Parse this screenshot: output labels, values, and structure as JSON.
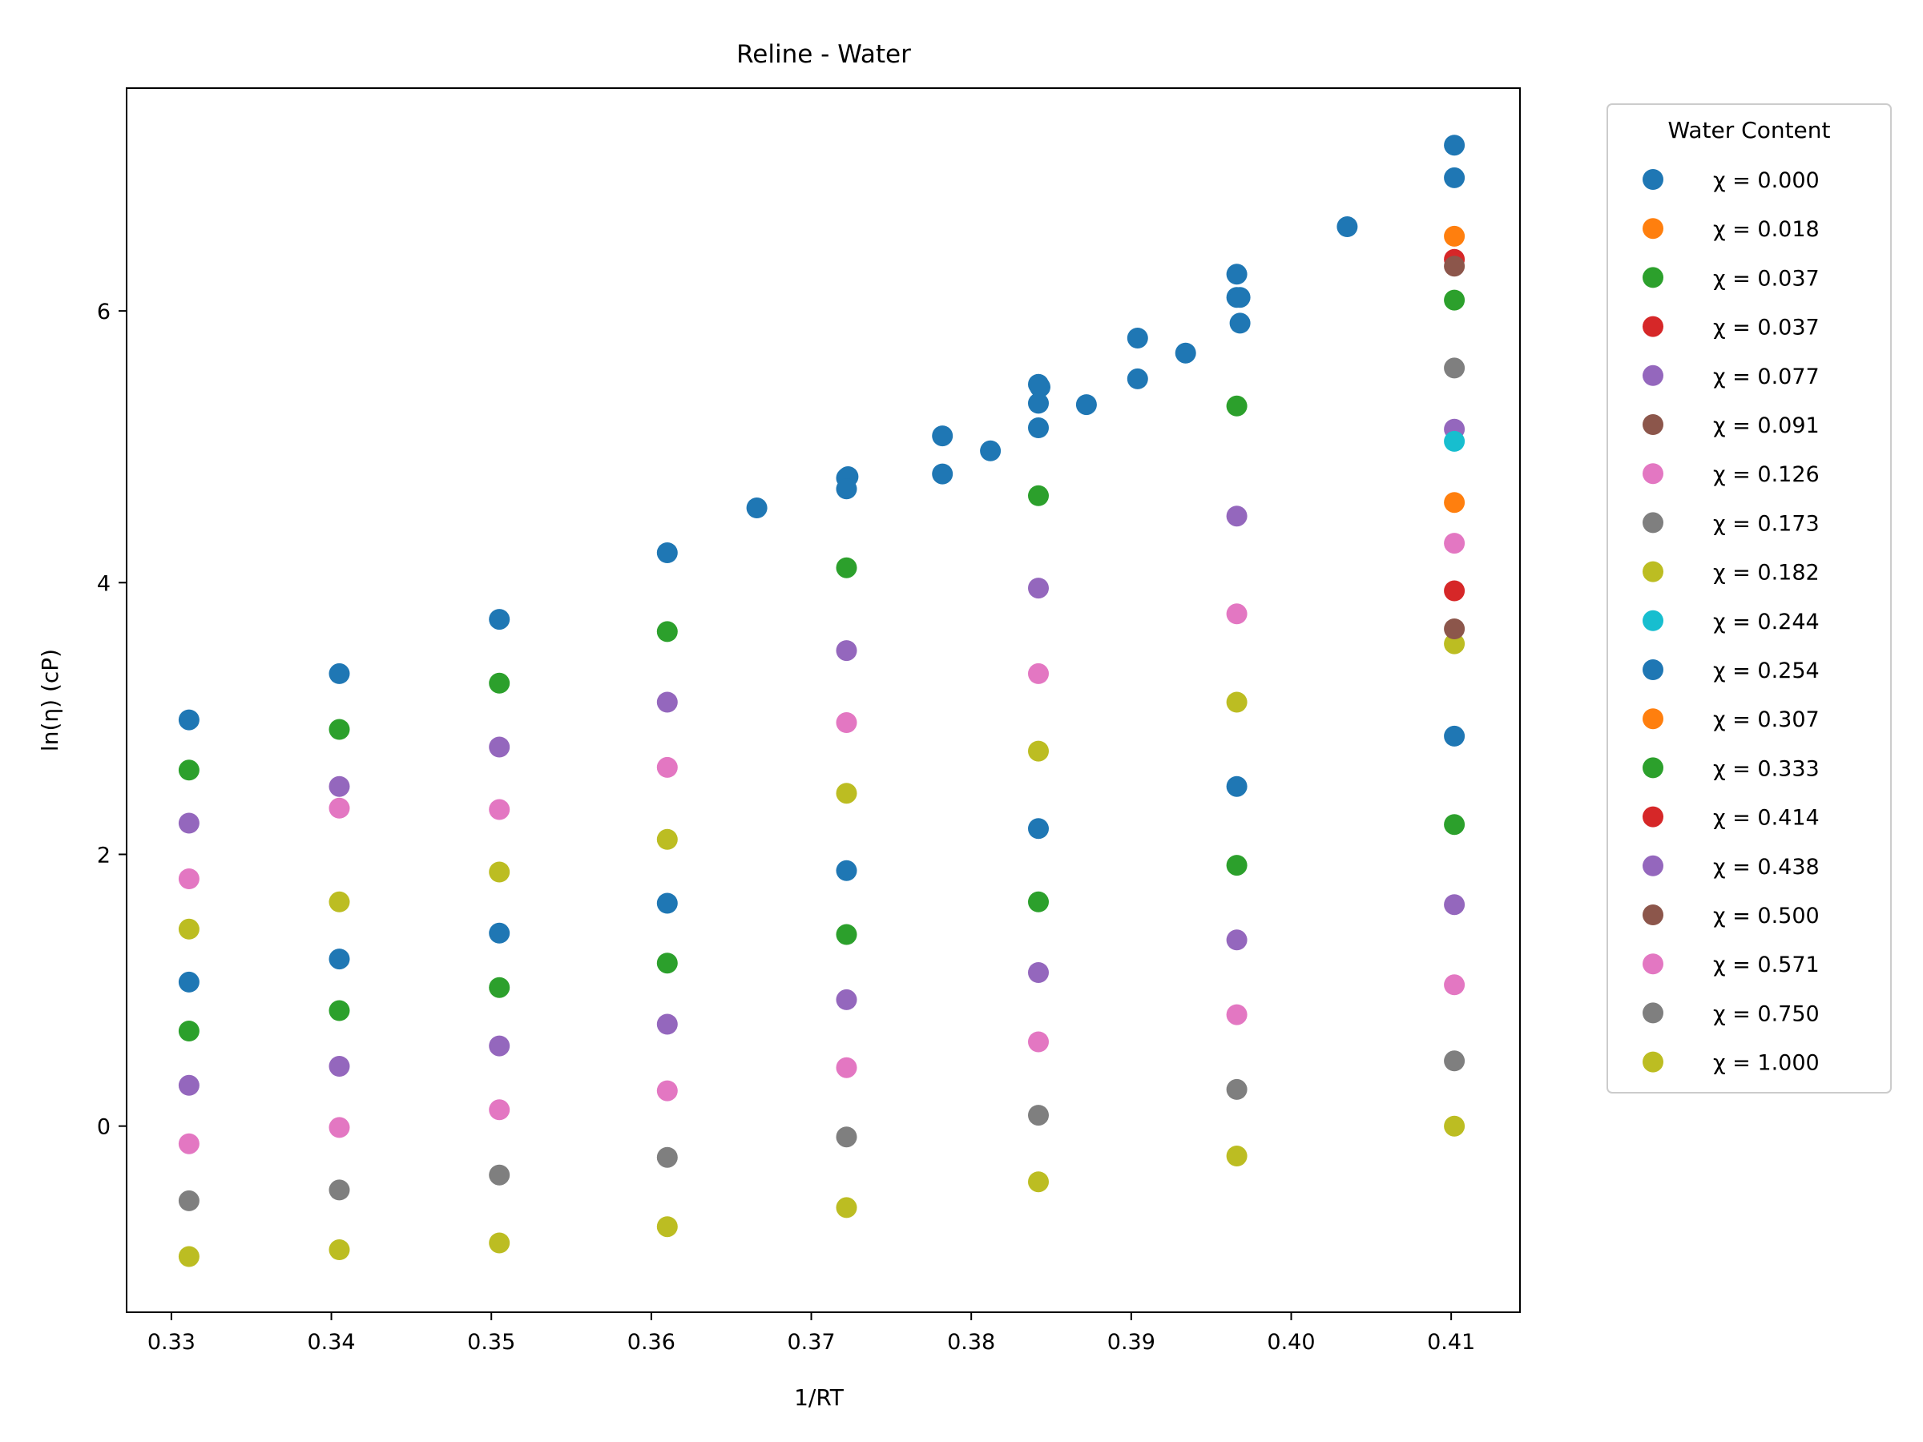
{
  "chart_data": {
    "type": "scatter",
    "title": "Reline - Water",
    "xlabel": "1/RT",
    "ylabel": "ln(η) (cP)",
    "xlim": [
      0.3272,
      0.4143
    ],
    "ylim": [
      -1.37,
      7.64
    ],
    "xticks": [
      0.33,
      0.34,
      0.35,
      0.36,
      0.37,
      0.38,
      0.39,
      0.4,
      0.41
    ],
    "xtick_labels": [
      "0.33",
      "0.34",
      "0.35",
      "0.36",
      "0.37",
      "0.38",
      "0.39",
      "0.40",
      "0.41"
    ],
    "yticks": [
      0,
      2,
      4,
      6
    ],
    "ytick_labels": [
      "0",
      "2",
      "4",
      "6"
    ],
    "grid": false,
    "legend": {
      "title": "Water Content",
      "placement": "outside-right"
    },
    "series": [
      {
        "name": "χ = 0.000",
        "color": "#1f77b4",
        "points": [
          [
            0.3311,
            2.99
          ],
          [
            0.3405,
            3.33
          ],
          [
            0.3505,
            3.73
          ],
          [
            0.361,
            4.22
          ],
          [
            0.3666,
            4.55
          ],
          [
            0.3722,
            4.77
          ],
          [
            0.3723,
            4.78
          ],
          [
            0.3722,
            4.69
          ],
          [
            0.3782,
            5.08
          ],
          [
            0.3782,
            4.8
          ],
          [
            0.3812,
            4.97
          ],
          [
            0.3842,
            5.46
          ],
          [
            0.3843,
            5.44
          ],
          [
            0.3842,
            5.32
          ],
          [
            0.3842,
            5.14
          ],
          [
            0.3872,
            5.31
          ],
          [
            0.3904,
            5.8
          ],
          [
            0.3904,
            5.5
          ],
          [
            0.3934,
            5.69
          ],
          [
            0.3966,
            6.27
          ],
          [
            0.3966,
            6.1
          ],
          [
            0.3968,
            6.1
          ],
          [
            0.3968,
            5.91
          ],
          [
            0.4035,
            6.62
          ],
          [
            0.4102,
            7.22
          ],
          [
            0.4102,
            6.98
          ]
        ]
      },
      {
        "name": "χ = 0.018",
        "color": "#ff7f0e",
        "points": [
          [
            0.4102,
            6.55
          ]
        ]
      },
      {
        "name": "χ = 0.037",
        "color": "#2ca02c",
        "points": [
          [
            0.4102,
            6.08
          ]
        ]
      },
      {
        "name": "χ = 0.037",
        "color": "#d62728",
        "points": [
          [
            0.4102,
            6.38
          ]
        ]
      },
      {
        "name": "χ = 0.077",
        "color": "#9467bd",
        "points": [
          [
            0.4102,
            5.13
          ]
        ]
      },
      {
        "name": "χ = 0.091",
        "color": "#8c564b",
        "points": [
          [
            0.4102,
            6.33
          ]
        ]
      },
      {
        "name": "χ = 0.126",
        "color": "#e377c2",
        "points": [
          [
            0.4102,
            4.29
          ]
        ]
      },
      {
        "name": "χ = 0.173",
        "color": "#7f7f7f",
        "points": [
          [
            0.4102,
            5.58
          ]
        ]
      },
      {
        "name": "χ = 0.182",
        "color": "#bcbd22",
        "points": [
          [
            0.4102,
            3.55
          ]
        ]
      },
      {
        "name": "χ = 0.244",
        "color": "#17becf",
        "points": [
          [
            0.4102,
            5.04
          ]
        ]
      },
      {
        "name": "χ = 0.254",
        "color": "#1f77b4",
        "points": [
          [
            0.3311,
            1.06
          ],
          [
            0.3405,
            1.23
          ],
          [
            0.3505,
            1.42
          ],
          [
            0.361,
            1.64
          ],
          [
            0.3722,
            1.88
          ],
          [
            0.3842,
            2.19
          ],
          [
            0.3966,
            2.5
          ],
          [
            0.4102,
            2.87
          ]
        ]
      },
      {
        "name": "χ = 0.307",
        "color": "#ff7f0e",
        "points": [
          [
            0.4102,
            4.59
          ]
        ]
      },
      {
        "name": "χ = 0.333",
        "color": "#2ca02c",
        "points": [
          [
            0.3311,
            2.62
          ],
          [
            0.3405,
            2.92
          ],
          [
            0.3505,
            3.26
          ],
          [
            0.361,
            3.64
          ],
          [
            0.3722,
            4.11
          ],
          [
            0.3842,
            4.64
          ],
          [
            0.3966,
            5.3
          ],
          [
            0.3311,
            0.7
          ],
          [
            0.3405,
            0.85
          ],
          [
            0.3505,
            1.02
          ],
          [
            0.361,
            1.2
          ],
          [
            0.3722,
            1.41
          ],
          [
            0.3842,
            1.65
          ],
          [
            0.3966,
            1.92
          ],
          [
            0.4102,
            2.22
          ]
        ]
      },
      {
        "name": "χ = 0.414",
        "color": "#d62728",
        "points": [
          [
            0.4102,
            3.94
          ]
        ]
      },
      {
        "name": "χ = 0.438",
        "color": "#9467bd",
        "points": [
          [
            0.3311,
            2.23
          ],
          [
            0.3405,
            2.5
          ],
          [
            0.3505,
            2.79
          ],
          [
            0.361,
            3.12
          ],
          [
            0.3722,
            3.5
          ],
          [
            0.3842,
            3.96
          ],
          [
            0.3966,
            4.49
          ],
          [
            0.3311,
            0.3
          ],
          [
            0.3405,
            0.44
          ],
          [
            0.3505,
            0.59
          ],
          [
            0.361,
            0.75
          ],
          [
            0.3722,
            0.93
          ],
          [
            0.3842,
            1.13
          ],
          [
            0.3966,
            1.37
          ],
          [
            0.4102,
            1.63
          ]
        ]
      },
      {
        "name": "χ = 0.500",
        "color": "#8c564b",
        "points": [
          [
            0.4102,
            3.66
          ]
        ]
      },
      {
        "name": "χ = 0.571",
        "color": "#e377c2",
        "points": [
          [
            0.3311,
            1.82
          ],
          [
            0.3405,
            2.34
          ],
          [
            0.3505,
            2.33
          ],
          [
            0.361,
            2.64
          ],
          [
            0.3722,
            2.97
          ],
          [
            0.3842,
            3.33
          ],
          [
            0.3966,
            3.77
          ],
          [
            0.3311,
            -0.13
          ],
          [
            0.3405,
            -0.01
          ],
          [
            0.3505,
            0.12
          ],
          [
            0.361,
            0.26
          ],
          [
            0.3722,
            0.43
          ],
          [
            0.3842,
            0.62
          ],
          [
            0.3966,
            0.82
          ],
          [
            0.4102,
            1.04
          ]
        ]
      },
      {
        "name": "χ = 0.750",
        "color": "#7f7f7f",
        "points": [
          [
            0.3311,
            -0.55
          ],
          [
            0.3405,
            -0.47
          ],
          [
            0.3505,
            -0.36
          ],
          [
            0.361,
            -0.23
          ],
          [
            0.3722,
            -0.08
          ],
          [
            0.3842,
            0.08
          ],
          [
            0.3966,
            0.27
          ],
          [
            0.4102,
            0.48
          ]
        ]
      },
      {
        "name": "χ = 1.000",
        "color": "#bcbd22",
        "points": [
          [
            0.3311,
            1.45
          ],
          [
            0.3405,
            1.65
          ],
          [
            0.3505,
            1.87
          ],
          [
            0.361,
            2.11
          ],
          [
            0.3722,
            2.45
          ],
          [
            0.3842,
            2.76
          ],
          [
            0.3966,
            3.12
          ],
          [
            0.3311,
            -0.96
          ],
          [
            0.3405,
            -0.91
          ],
          [
            0.3505,
            -0.86
          ],
          [
            0.361,
            -0.74
          ],
          [
            0.3722,
            -0.6
          ],
          [
            0.3842,
            -0.41
          ],
          [
            0.3966,
            -0.22
          ],
          [
            0.4102,
            0.0
          ]
        ]
      }
    ]
  }
}
